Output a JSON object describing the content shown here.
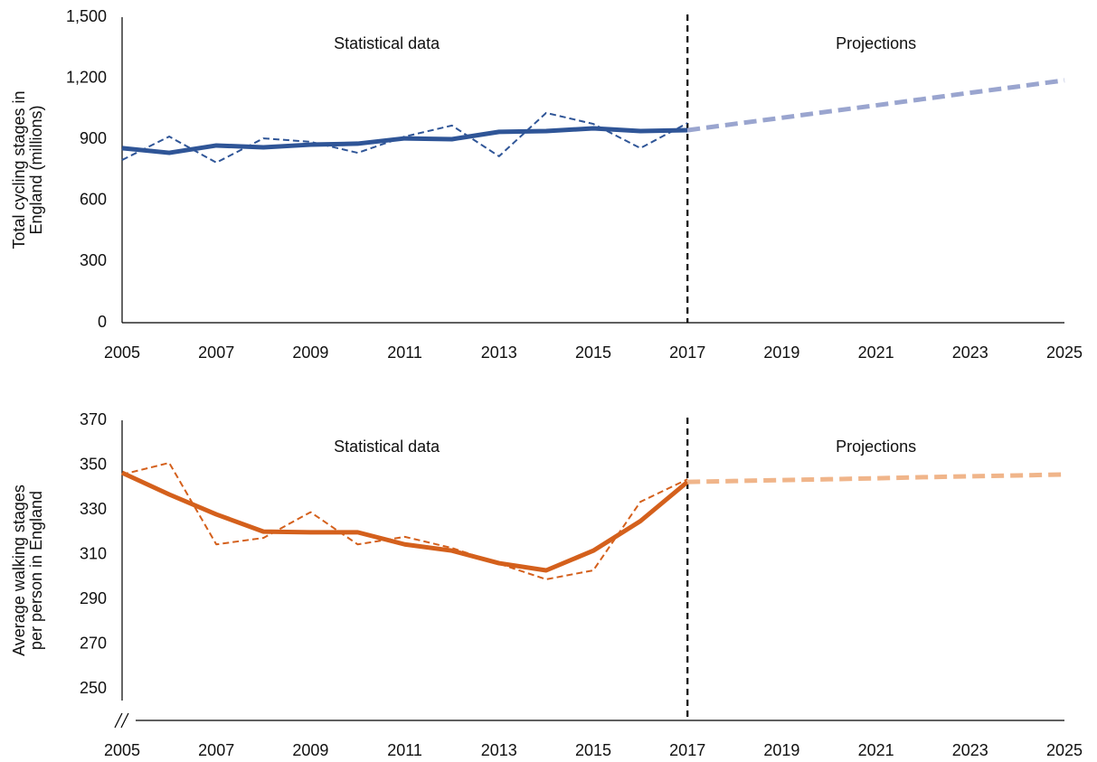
{
  "chart_data": [
    {
      "type": "line",
      "ylabel": [
        "Total cycling stages in",
        "England (millions)"
      ],
      "annotations": [
        "Statistical data",
        "Projections"
      ],
      "divider": 2017,
      "x": [
        2005,
        2006,
        2007,
        2008,
        2009,
        2010,
        2011,
        2012,
        2013,
        2014,
        2015,
        2016,
        2017,
        2018,
        2019,
        2020,
        2021,
        2022,
        2023,
        2024,
        2025
      ],
      "xlim": [
        2005,
        2025
      ],
      "xticks": [
        2005,
        2007,
        2009,
        2011,
        2013,
        2015,
        2017,
        2019,
        2021,
        2023,
        2025
      ],
      "ylim": [
        0,
        1500
      ],
      "yticks": [
        0,
        300,
        600,
        900,
        {
          "value": 1200,
          "label": "1,200"
        },
        {
          "value": 1500,
          "label": "1,500"
        }
      ],
      "axis_break": false,
      "series": [
        {
          "color": "#2f5597",
          "dash": true,
          "weight": "thin",
          "values": [
            799,
            914,
            786,
            905,
            888,
            834,
            914,
            968,
            817,
            1030,
            976,
            857,
            980,
            null,
            null,
            null,
            null,
            null,
            null,
            null,
            null
          ]
        },
        {
          "color": "#2f5597",
          "dash": false,
          "weight": "thick",
          "values": [
            857,
            834,
            870,
            861,
            874,
            879,
            905,
            901,
            937,
            941,
            954,
            941,
            945,
            null,
            null,
            null,
            null,
            null,
            null,
            null,
            null
          ]
        },
        {
          "color": "#9aa5cf",
          "dash": true,
          "weight": "thick",
          "values": [
            null,
            null,
            null,
            null,
            null,
            null,
            null,
            null,
            null,
            null,
            null,
            null,
            945,
            976,
            1006,
            1037,
            1067,
            1098,
            1129,
            1159,
            1190
          ]
        }
      ]
    },
    {
      "type": "line",
      "ylabel": [
        "Average walking stages",
        "per person in England"
      ],
      "annotations": [
        "Statistical data",
        "Projections"
      ],
      "divider": 2017,
      "x": [
        2005,
        2006,
        2007,
        2008,
        2009,
        2010,
        2011,
        2012,
        2013,
        2014,
        2015,
        2016,
        2017,
        2018,
        2019,
        2020,
        2021,
        2022,
        2023,
        2024,
        2025
      ],
      "xlim": [
        2005,
        2025
      ],
      "xticks": [
        2005,
        2007,
        2009,
        2011,
        2013,
        2015,
        2017,
        2019,
        2021,
        2023,
        2025
      ],
      "ylim": [
        236,
        370
      ],
      "yticks": [
        250,
        270,
        290,
        310,
        330,
        350,
        370
      ],
      "axis_break": true,
      "series": [
        {
          "color": "#d4601c",
          "dash": true,
          "weight": "thin",
          "values": [
            345.8,
            351,
            314.6,
            317.5,
            329,
            314.6,
            318,
            313,
            306,
            299,
            303,
            333.6,
            343.7,
            null,
            null,
            null,
            null,
            null,
            null,
            null,
            null
          ]
        },
        {
          "color": "#d4601c",
          "dash": false,
          "weight": "thick",
          "values": [
            346.6,
            336.9,
            328,
            320.3,
            320,
            320,
            314.6,
            311.8,
            306.2,
            303,
            311.8,
            325,
            342.5,
            null,
            null,
            null,
            null,
            null,
            null,
            null,
            null
          ]
        },
        {
          "color": "#f0b58a",
          "dash": true,
          "weight": "thick",
          "values": [
            null,
            null,
            null,
            null,
            null,
            null,
            null,
            null,
            null,
            null,
            null,
            null,
            342.5,
            342.9,
            343.3,
            343.7,
            344.1,
            344.6,
            345,
            345.4,
            345.8
          ]
        }
      ]
    }
  ]
}
